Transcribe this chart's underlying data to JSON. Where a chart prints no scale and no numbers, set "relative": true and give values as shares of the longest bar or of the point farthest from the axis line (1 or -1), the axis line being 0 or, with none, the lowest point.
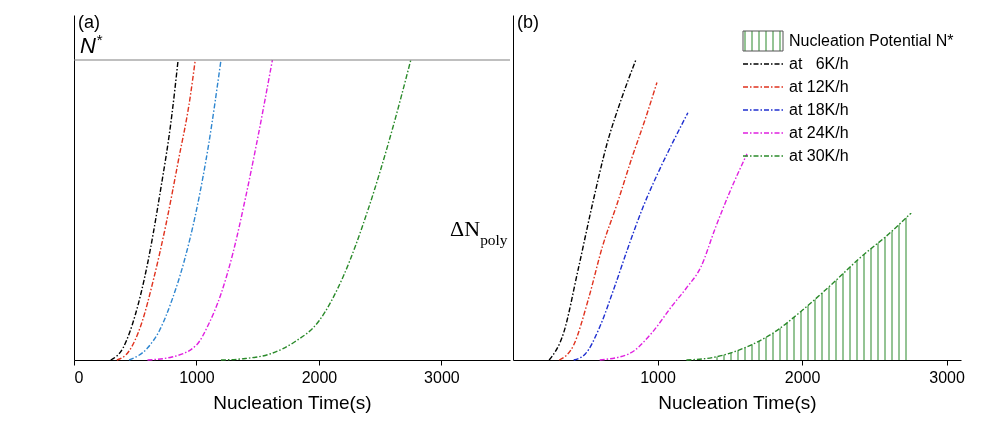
{
  "chart_data": [
    {
      "type": "line",
      "title": "(a)",
      "xlabel": "Nucleation Time(s)",
      "relative": true,
      "xlim": [
        0,
        3560
      ],
      "xticks": [
        0,
        1000,
        2000,
        3000
      ],
      "grid": false,
      "line_style": "dashed",
      "ref_lines": [
        {
          "axis": "y",
          "value": 1,
          "label": "N$^{*}$",
          "color": "#808080"
        }
      ],
      "series": [
        {
          "color": "#000000",
          "x": [
            300,
            400,
            500,
            600,
            700,
            800,
            850
          ],
          "values": [
            0,
            0.04,
            0.15,
            0.32,
            0.55,
            0.82,
            1.0
          ]
        },
        {
          "color": "#e0321e",
          "x": [
            350,
            450,
            550,
            650,
            750,
            850,
            950,
            990
          ],
          "values": [
            0,
            0.03,
            0.12,
            0.27,
            0.45,
            0.66,
            0.88,
            1.0
          ]
        },
        {
          "color": "#2e86d0",
          "x": [
            450,
            600,
            700,
            800,
            900,
            1000,
            1100,
            1200
          ],
          "values": [
            0,
            0.04,
            0.1,
            0.2,
            0.33,
            0.5,
            0.72,
            1.0
          ]
        },
        {
          "color": "#e020e0",
          "x": [
            600,
            800,
            1000,
            1100,
            1200,
            1300,
            1400,
            1500,
            1620
          ],
          "values": [
            0,
            0.01,
            0.05,
            0.12,
            0.22,
            0.36,
            0.54,
            0.74,
            1.0
          ]
        },
        {
          "color": "#2a8a2a",
          "x": [
            1200,
            1400,
            1600,
            1800,
            2000,
            2200,
            2400,
            2600,
            2750
          ],
          "values": [
            0,
            0.005,
            0.02,
            0.06,
            0.13,
            0.28,
            0.5,
            0.77,
            1.0
          ]
        }
      ]
    },
    {
      "type": "line",
      "title": "(b)",
      "xlabel": "Nucleation Time(s)",
      "ylabel": "ΔN$_{poly}$",
      "relative": true,
      "xlim": [
        0,
        3100
      ],
      "xticks": [
        1000,
        2000,
        3000
      ],
      "grid": false,
      "legend": "top right",
      "line_style": "dashed",
      "series": [
        {
          "name": "Nucleation Potential N*",
          "type": "area",
          "color": "#2a8a2a",
          "x": [
            1400,
            1600,
            1800,
            2000,
            2200,
            2400,
            2600,
            2755
          ],
          "values": [
            0.01,
            0.04,
            0.09,
            0.165,
            0.25,
            0.34,
            0.42,
            0.49
          ]
        },
        {
          "name": "at   6K/h",
          "color": "#000000",
          "x": [
            250,
            350,
            450,
            550,
            650,
            750,
            850
          ],
          "values": [
            0,
            0.09,
            0.3,
            0.52,
            0.72,
            0.87,
            1.0
          ]
        },
        {
          "name": "at 12K/h",
          "color": "#e0321e",
          "x": [
            320,
            420,
            520,
            620,
            720,
            820,
            920,
            996
          ],
          "values": [
            0,
            0.05,
            0.2,
            0.38,
            0.52,
            0.67,
            0.81,
            0.925
          ]
        },
        {
          "name": "at 18K/h",
          "color": "#1f2fd0",
          "x": [
            420,
            500,
            600,
            700,
            800,
            900,
            1000,
            1100,
            1210
          ],
          "values": [
            0,
            0.02,
            0.11,
            0.24,
            0.38,
            0.51,
            0.62,
            0.72,
            0.824
          ]
        },
        {
          "name": "at 24K/h",
          "color": "#e020e0",
          "x": [
            600,
            800,
            960,
            1100,
            1200,
            1300,
            1400,
            1500,
            1619
          ],
          "values": [
            0,
            0.02,
            0.09,
            0.18,
            0.24,
            0.31,
            0.44,
            0.56,
            0.687
          ]
        },
        {
          "name": "at 30K/h",
          "color": "#2a8a2a",
          "x": [
            1200,
            1400,
            1600,
            1800,
            2000,
            2200,
            2400,
            2600,
            2755
          ],
          "values": [
            0,
            0.01,
            0.04,
            0.09,
            0.165,
            0.25,
            0.34,
            0.42,
            0.49
          ]
        }
      ]
    }
  ]
}
